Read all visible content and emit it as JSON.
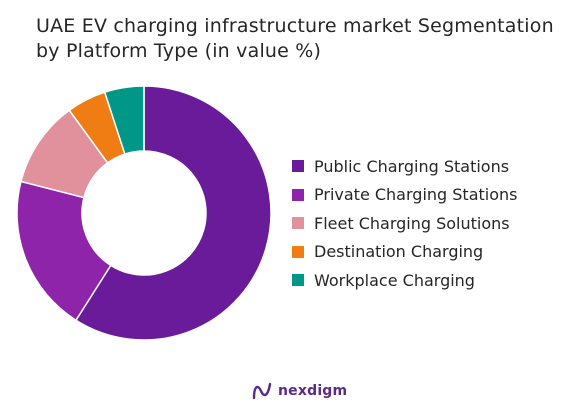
{
  "title": "UAE EV charging infrastructure market Segmentation by Platform Type (in value %)",
  "brand": {
    "name": "nexdigm",
    "icon": "nexdigm-logo-icon",
    "color": "#5b2a86"
  },
  "chart_data": {
    "type": "pie",
    "subtype": "donut",
    "title": "UAE EV charging infrastructure market Segmentation by Platform Type (in value %)",
    "legend_position": "right",
    "categories": [
      "Public Charging Stations",
      "Private Charging Stations",
      "Fleet Charging Solutions",
      "Destination Charging",
      "Workplace Charging"
    ],
    "values": [
      59,
      20,
      11,
      5,
      5
    ],
    "colors": [
      "#6a1b9a",
      "#8e24aa",
      "#e0919c",
      "#f07c14",
      "#009688"
    ]
  }
}
